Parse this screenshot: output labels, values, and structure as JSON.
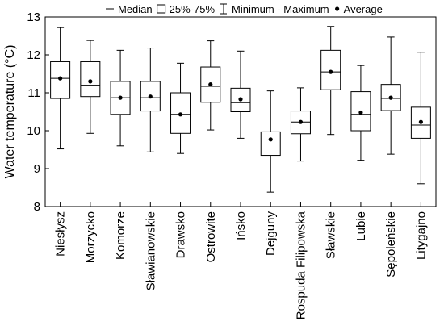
{
  "chart_data": {
    "type": "boxplot",
    "ylabel": "Water temperature (°C)",
    "ylim": [
      8,
      13
    ],
    "yticks": [
      8,
      9,
      10,
      11,
      12,
      13
    ],
    "grid": false,
    "legend": {
      "position": "top",
      "entries": [
        {
          "marker": "median-line",
          "label": "Median"
        },
        {
          "marker": "box",
          "label": "25%-75%"
        },
        {
          "marker": "whisker",
          "label": "Minimum - Maximum"
        },
        {
          "marker": "dot",
          "label": "Average"
        }
      ]
    },
    "categories": [
      "Niesłysz",
      "Morzycko",
      "Komorze",
      "Sławianowskie",
      "Drawsko",
      "Ostrowite",
      "Ińsko",
      "Dejguny",
      "Rospuda Filipowska",
      "Sławskie",
      "Lubie",
      "Sępoleńskie",
      "Litygajno"
    ],
    "series": [
      {
        "category": "Niesłysz",
        "min": 9.52,
        "q1": 10.85,
        "median": 11.38,
        "q3": 11.82,
        "max": 12.72,
        "mean": 11.38
      },
      {
        "category": "Morzycko",
        "min": 9.93,
        "q1": 10.9,
        "median": 11.2,
        "q3": 11.82,
        "max": 12.38,
        "mean": 11.3
      },
      {
        "category": "Komorze",
        "min": 9.6,
        "q1": 10.43,
        "median": 10.87,
        "q3": 11.3,
        "max": 12.12,
        "mean": 10.87
      },
      {
        "category": "Sławianowskie",
        "min": 9.44,
        "q1": 10.52,
        "median": 10.87,
        "q3": 11.3,
        "max": 12.18,
        "mean": 10.9
      },
      {
        "category": "Drawsko",
        "min": 9.4,
        "q1": 9.93,
        "median": 10.43,
        "q3": 11.0,
        "max": 11.78,
        "mean": 10.43
      },
      {
        "category": "Ostrowite",
        "min": 10.02,
        "q1": 10.75,
        "median": 11.17,
        "q3": 11.68,
        "max": 12.37,
        "mean": 11.22
      },
      {
        "category": "Ińsko",
        "min": 9.8,
        "q1": 10.5,
        "median": 10.74,
        "q3": 11.12,
        "max": 12.1,
        "mean": 10.83
      },
      {
        "category": "Dejguny",
        "min": 8.38,
        "q1": 9.35,
        "median": 9.65,
        "q3": 9.97,
        "max": 11.05,
        "mean": 9.77
      },
      {
        "category": "Rospuda Filipowska",
        "min": 9.2,
        "q1": 9.92,
        "median": 10.23,
        "q3": 10.52,
        "max": 11.13,
        "mean": 10.23
      },
      {
        "category": "Sławskie",
        "min": 9.9,
        "q1": 11.08,
        "median": 11.55,
        "q3": 12.12,
        "max": 12.75,
        "mean": 11.55
      },
      {
        "category": "Lubie",
        "min": 9.22,
        "q1": 10.0,
        "median": 10.43,
        "q3": 11.03,
        "max": 11.72,
        "mean": 10.48
      },
      {
        "category": "Sępoleńskie",
        "min": 9.38,
        "q1": 10.53,
        "median": 10.85,
        "q3": 11.22,
        "max": 12.47,
        "mean": 10.87
      },
      {
        "category": "Litygajno",
        "min": 8.6,
        "q1": 9.8,
        "median": 10.15,
        "q3": 10.62,
        "max": 12.07,
        "mean": 10.23
      }
    ]
  }
}
